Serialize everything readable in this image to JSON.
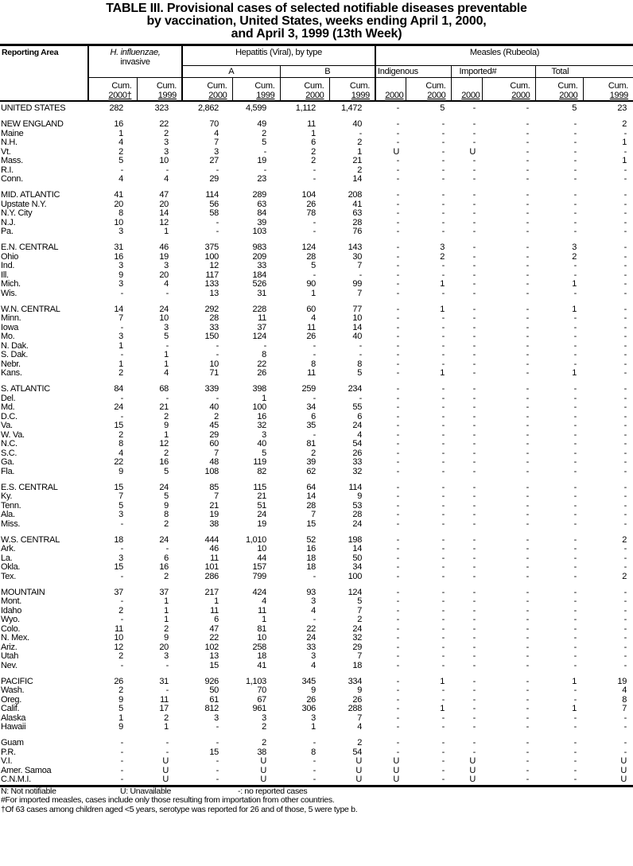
{
  "title_lines": [
    "TABLE III. Provisional  cases  of selected  notifiable  diseases  preventable",
    "by vaccination, United States, weeks ending April 1, 2000,",
    "and April 3, 1999 (13th Week)"
  ],
  "header": {
    "reporting_area": "Reporting Area",
    "hflu_line1": "H. influenzae,",
    "hflu_line2": "invasive",
    "hepatitis": "Hepatitis (Viral), by type",
    "hep_a": "A",
    "hep_b": "B",
    "measles": "Measles (Rubeola)",
    "indigenous": "Indigenous",
    "imported": "Imported#",
    "total": "Total",
    "cum": "Cum.",
    "y2000_dagger": "2000†",
    "y2000": "2000",
    "y1999": "1999"
  },
  "groups": [
    [
      [
        "UNITED STATES",
        "282",
        "323",
        "2,862",
        "4,599",
        "1,112",
        "1,472",
        "-",
        "5",
        "-",
        "-",
        "5",
        "23"
      ]
    ],
    [
      [
        "NEW ENGLAND",
        "16",
        "22",
        "70",
        "49",
        "11",
        "40",
        "-",
        "-",
        "-",
        "-",
        "-",
        "2"
      ],
      [
        "Maine",
        "1",
        "2",
        "4",
        "2",
        "1",
        "-",
        "-",
        "-",
        "-",
        "-",
        "-",
        "-"
      ],
      [
        "N.H.",
        "4",
        "3",
        "7",
        "5",
        "6",
        "2",
        "-",
        "-",
        "-",
        "-",
        "-",
        "1"
      ],
      [
        "Vt.",
        "2",
        "3",
        "3",
        "-",
        "2",
        "1",
        "U",
        "-",
        "U",
        "-",
        "-",
        "-"
      ],
      [
        "Mass.",
        "5",
        "10",
        "27",
        "19",
        "2",
        "21",
        "-",
        "-",
        "-",
        "-",
        "-",
        "1"
      ],
      [
        "R.I.",
        "-",
        "-",
        "-",
        "-",
        "-",
        "2",
        "-",
        "-",
        "-",
        "-",
        "-",
        "-"
      ],
      [
        "Conn.",
        "4",
        "4",
        "29",
        "23",
        "-",
        "14",
        "-",
        "-",
        "-",
        "-",
        "-",
        "-"
      ]
    ],
    [
      [
        "MID. ATLANTIC",
        "41",
        "47",
        "114",
        "289",
        "104",
        "208",
        "-",
        "-",
        "-",
        "-",
        "-",
        "-"
      ],
      [
        "Upstate N.Y.",
        "20",
        "20",
        "56",
        "63",
        "26",
        "41",
        "-",
        "-",
        "-",
        "-",
        "-",
        "-"
      ],
      [
        "N.Y. City",
        "8",
        "14",
        "58",
        "84",
        "78",
        "63",
        "-",
        "-",
        "-",
        "-",
        "-",
        "-"
      ],
      [
        "N.J.",
        "10",
        "12",
        "-",
        "39",
        "-",
        "28",
        "-",
        "-",
        "-",
        "-",
        "-",
        "-"
      ],
      [
        "Pa.",
        "3",
        "1",
        "-",
        "103",
        "-",
        "76",
        "-",
        "-",
        "-",
        "-",
        "-",
        "-"
      ]
    ],
    [
      [
        "E.N. CENTRAL",
        "31",
        "46",
        "375",
        "983",
        "124",
        "143",
        "-",
        "3",
        "-",
        "-",
        "3",
        "-"
      ],
      [
        "Ohio",
        "16",
        "19",
        "100",
        "209",
        "28",
        "30",
        "-",
        "2",
        "-",
        "-",
        "2",
        "-"
      ],
      [
        "Ind.",
        "3",
        "3",
        "12",
        "33",
        "5",
        "7",
        "-",
        "-",
        "-",
        "-",
        "-",
        "-"
      ],
      [
        "Ill.",
        "9",
        "20",
        "117",
        "184",
        "-",
        "-",
        "-",
        "-",
        "-",
        "-",
        "-",
        "-"
      ],
      [
        "Mich.",
        "3",
        "4",
        "133",
        "526",
        "90",
        "99",
        "-",
        "1",
        "-",
        "-",
        "1",
        "-"
      ],
      [
        "Wis.",
        "-",
        "-",
        "13",
        "31",
        "1",
        "7",
        "-",
        "-",
        "-",
        "-",
        "-",
        "-"
      ]
    ],
    [
      [
        "W.N. CENTRAL",
        "14",
        "24",
        "292",
        "228",
        "60",
        "77",
        "-",
        "1",
        "-",
        "-",
        "1",
        "-"
      ],
      [
        "Minn.",
        "7",
        "10",
        "28",
        "11",
        "4",
        "10",
        "-",
        "-",
        "-",
        "-",
        "-",
        "-"
      ],
      [
        "Iowa",
        "-",
        "3",
        "33",
        "37",
        "11",
        "14",
        "-",
        "-",
        "-",
        "-",
        "-",
        "-"
      ],
      [
        "Mo.",
        "3",
        "5",
        "150",
        "124",
        "26",
        "40",
        "-",
        "-",
        "-",
        "-",
        "-",
        "-"
      ],
      [
        "N. Dak.",
        "1",
        "-",
        "-",
        "-",
        "-",
        "-",
        "-",
        "-",
        "-",
        "-",
        "-",
        "-"
      ],
      [
        "S. Dak.",
        "-",
        "1",
        "-",
        "8",
        "-",
        "-",
        "-",
        "-",
        "-",
        "-",
        "-",
        "-"
      ],
      [
        "Nebr.",
        "1",
        "1",
        "10",
        "22",
        "8",
        "8",
        "-",
        "-",
        "-",
        "-",
        "-",
        "-"
      ],
      [
        "Kans.",
        "2",
        "4",
        "71",
        "26",
        "11",
        "5",
        "-",
        "1",
        "-",
        "-",
        "1",
        "-"
      ]
    ],
    [
      [
        "S. ATLANTIC",
        "84",
        "68",
        "339",
        "398",
        "259",
        "234",
        "-",
        "-",
        "-",
        "-",
        "-",
        "-"
      ],
      [
        "Del.",
        "-",
        "-",
        "-",
        "1",
        "-",
        "-",
        "-",
        "-",
        "-",
        "-",
        "-",
        "-"
      ],
      [
        "Md.",
        "24",
        "21",
        "40",
        "100",
        "34",
        "55",
        "-",
        "-",
        "-",
        "-",
        "-",
        "-"
      ],
      [
        "D.C.",
        "-",
        "2",
        "2",
        "16",
        "6",
        "6",
        "-",
        "-",
        "-",
        "-",
        "-",
        "-"
      ],
      [
        "Va.",
        "15",
        "9",
        "45",
        "32",
        "35",
        "24",
        "-",
        "-",
        "-",
        "-",
        "-",
        "-"
      ],
      [
        "W. Va.",
        "2",
        "1",
        "29",
        "3",
        "-",
        "4",
        "-",
        "-",
        "-",
        "-",
        "-",
        "-"
      ],
      [
        "N.C.",
        "8",
        "12",
        "60",
        "40",
        "81",
        "54",
        "-",
        "-",
        "-",
        "-",
        "-",
        "-"
      ],
      [
        "S.C.",
        "4",
        "2",
        "7",
        "5",
        "2",
        "26",
        "-",
        "-",
        "-",
        "-",
        "-",
        "-"
      ],
      [
        "Ga.",
        "22",
        "16",
        "48",
        "119",
        "39",
        "33",
        "-",
        "-",
        "-",
        "-",
        "-",
        "-"
      ],
      [
        "Fla.",
        "9",
        "5",
        "108",
        "82",
        "62",
        "32",
        "-",
        "-",
        "-",
        "-",
        "-",
        "-"
      ]
    ],
    [
      [
        "E.S. CENTRAL",
        "15",
        "24",
        "85",
        "115",
        "64",
        "114",
        "-",
        "-",
        "-",
        "-",
        "-",
        "-"
      ],
      [
        "Ky.",
        "7",
        "5",
        "7",
        "21",
        "14",
        "9",
        "-",
        "-",
        "-",
        "-",
        "-",
        "-"
      ],
      [
        "Tenn.",
        "5",
        "9",
        "21",
        "51",
        "28",
        "53",
        "-",
        "-",
        "-",
        "-",
        "-",
        "-"
      ],
      [
        "Ala.",
        "3",
        "8",
        "19",
        "24",
        "7",
        "28",
        "-",
        "-",
        "-",
        "-",
        "-",
        "-"
      ],
      [
        "Miss.",
        "-",
        "2",
        "38",
        "19",
        "15",
        "24",
        "-",
        "-",
        "-",
        "-",
        "-",
        "-"
      ]
    ],
    [
      [
        "W.S. CENTRAL",
        "18",
        "24",
        "444",
        "1,010",
        "52",
        "198",
        "-",
        "-",
        "-",
        "-",
        "-",
        "2"
      ],
      [
        "Ark.",
        "-",
        "-",
        "46",
        "10",
        "16",
        "14",
        "-",
        "-",
        "-",
        "-",
        "-",
        "-"
      ],
      [
        "La.",
        "3",
        "6",
        "11",
        "44",
        "18",
        "50",
        "-",
        "-",
        "-",
        "-",
        "-",
        "-"
      ],
      [
        "Okla.",
        "15",
        "16",
        "101",
        "157",
        "18",
        "34",
        "-",
        "-",
        "-",
        "-",
        "-",
        "-"
      ],
      [
        "Tex.",
        "-",
        "2",
        "286",
        "799",
        "-",
        "100",
        "-",
        "-",
        "-",
        "-",
        "-",
        "2"
      ]
    ],
    [
      [
        "MOUNTAIN",
        "37",
        "37",
        "217",
        "424",
        "93",
        "124",
        "-",
        "-",
        "-",
        "-",
        "-",
        "-"
      ],
      [
        "Mont.",
        "-",
        "1",
        "1",
        "4",
        "3",
        "5",
        "-",
        "-",
        "-",
        "-",
        "-",
        "-"
      ],
      [
        "Idaho",
        "2",
        "1",
        "11",
        "11",
        "4",
        "7",
        "-",
        "-",
        "-",
        "-",
        "-",
        "-"
      ],
      [
        "Wyo.",
        "-",
        "1",
        "6",
        "1",
        "-",
        "2",
        "-",
        "-",
        "-",
        "-",
        "-",
        "-"
      ],
      [
        "Colo.",
        "11",
        "2",
        "47",
        "81",
        "22",
        "24",
        "-",
        "-",
        "-",
        "-",
        "-",
        "-"
      ],
      [
        "N. Mex.",
        "10",
        "9",
        "22",
        "10",
        "24",
        "32",
        "-",
        "-",
        "-",
        "-",
        "-",
        "-"
      ],
      [
        "Ariz.",
        "12",
        "20",
        "102",
        "258",
        "33",
        "29",
        "-",
        "-",
        "-",
        "-",
        "-",
        "-"
      ],
      [
        "Utah",
        "2",
        "3",
        "13",
        "18",
        "3",
        "7",
        "-",
        "-",
        "-",
        "-",
        "-",
        "-"
      ],
      [
        "Nev.",
        "-",
        "-",
        "15",
        "41",
        "4",
        "18",
        "-",
        "-",
        "-",
        "-",
        "-",
        "-"
      ]
    ],
    [
      [
        "PACIFIC",
        "26",
        "31",
        "926",
        "1,103",
        "345",
        "334",
        "-",
        "1",
        "-",
        "-",
        "1",
        "19"
      ],
      [
        "Wash.",
        "2",
        "-",
        "50",
        "70",
        "9",
        "9",
        "-",
        "-",
        "-",
        "-",
        "-",
        "4"
      ],
      [
        "Oreg.",
        "9",
        "11",
        "61",
        "67",
        "26",
        "26",
        "-",
        "-",
        "-",
        "-",
        "-",
        "8"
      ],
      [
        "Calif.",
        "5",
        "17",
        "812",
        "961",
        "306",
        "288",
        "-",
        "1",
        "-",
        "-",
        "1",
        "7"
      ],
      [
        "Alaska",
        "1",
        "2",
        "3",
        "3",
        "3",
        "7",
        "-",
        "-",
        "-",
        "-",
        "-",
        "-"
      ],
      [
        "Hawaii",
        "9",
        "1",
        "-",
        "2",
        "1",
        "4",
        "-",
        "-",
        "-",
        "-",
        "-",
        "-"
      ]
    ],
    [
      [
        "Guam",
        "-",
        "-",
        "-",
        "2",
        "-",
        "2",
        "-",
        "-",
        "-",
        "-",
        "-",
        "-"
      ],
      [
        "P.R.",
        "-",
        "-",
        "15",
        "38",
        "8",
        "54",
        "-",
        "-",
        "-",
        "-",
        "-",
        "-"
      ],
      [
        "V.I.",
        "-",
        "U",
        "-",
        "U",
        "-",
        "U",
        "U",
        "-",
        "U",
        "-",
        "-",
        "U"
      ],
      [
        "Amer. Samoa",
        "-",
        "U",
        "-",
        "U",
        "-",
        "U",
        "U",
        "-",
        "U",
        "-",
        "-",
        "U"
      ],
      [
        "C.N.M.I.",
        "-",
        "U",
        "-",
        "U",
        "-",
        "U",
        "U",
        "-",
        "U",
        "-",
        "-",
        "U"
      ]
    ]
  ],
  "footer": {
    "legend_n": "N: Not notifiable",
    "legend_u": "U: Unavailable",
    "legend_dash": "-: no reported cases",
    "note_imported": "#For imported measles, cases include only those resulting from importation from other countries.",
    "note_dagger": "†Of 63 cases among children aged <5 years, serotype was reported for 26 and of those, 5 were type b."
  }
}
